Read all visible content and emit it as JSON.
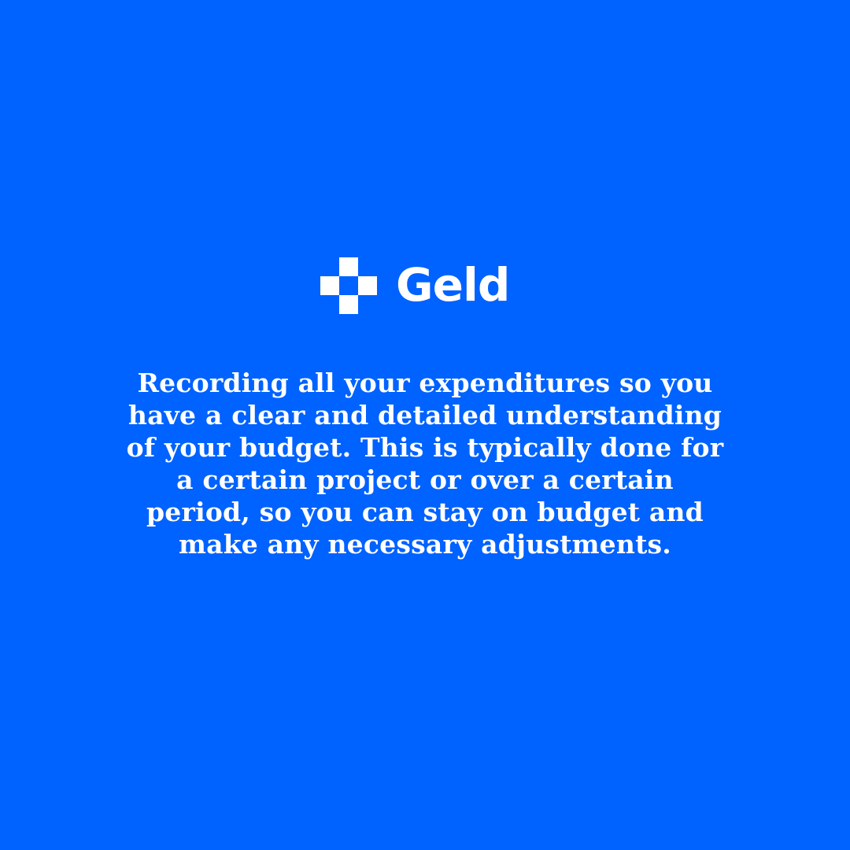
{
  "brand": {
    "name": "Geld",
    "icon": "checkered-cross-logo-icon"
  },
  "content": {
    "lines": [
      "Recording all your expenditures so you",
      "have a clear and detailed understanding",
      "of your budget. This is typically done for",
      "a certain project or over a certain",
      "period, so you can stay on budget and",
      "make any necessary adjustments."
    ]
  },
  "colors": {
    "background": "#0062ff",
    "text": "#ffffff"
  }
}
